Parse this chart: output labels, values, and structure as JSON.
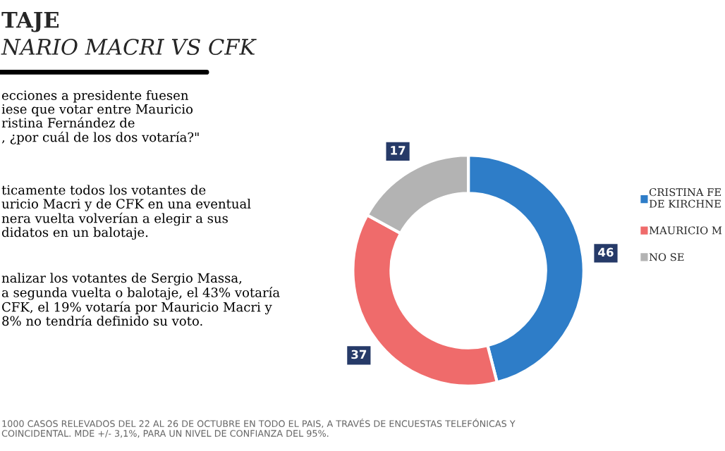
{
  "chart_data": {
    "type": "donut",
    "title": "TAJE",
    "subtitle": "NARIO MACRI VS CFK",
    "categories": [
      "CRISTINA FE\nDE KIRCHNE",
      "MAURICIO M",
      "NO SE"
    ],
    "values": [
      46,
      37,
      17
    ],
    "colors": [
      "#2e7dc8",
      "#ef6b6b",
      "#b3b3b3"
    ],
    "data_labels": true,
    "legend": "right",
    "annotations": [
      "ecciones a presidente fuesen\niese que votar entre Mauricio\nristina Fernández de\n, ¿por cuál de los dos votaría?\"",
      "ticamente todos los votantes de\nuricio Macri y de CFK en una eventual\nnera vuelta volverían a elegir a sus\ndidatos en un balotaje.",
      "nalizar los votantes de Sergio Massa,\na segunda vuelta o balotaje, el 43% votaría\nCFK, el 19% votaría por Mauricio Macri y\n8% no tendría definido su voto.",
      "1000 CASOS RELEVADOS DEL 22 AL 26 DE OCTUBRE EN TODO EL PAIS, A TRAVÉS DE ENCUESTAS TELEFÓNICAS Y\nCOINCIDENTAL. MDE +/- 3,1%, PARA UN NIVEL DE CONFIANZA DEL 95%."
    ]
  }
}
